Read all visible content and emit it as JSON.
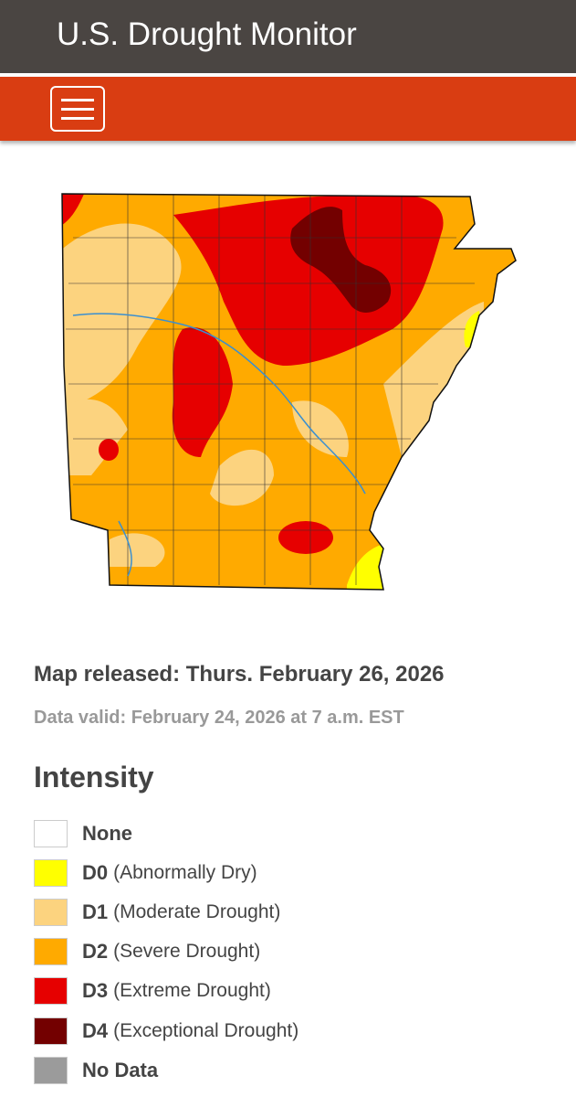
{
  "header": {
    "title": "U.S. Drought Monitor"
  },
  "map_info": {
    "released": "Map released: Thurs. February 26, 2026",
    "valid": "Data valid: February 24, 2026 at 7 a.m. EST"
  },
  "legend": {
    "title": "Intensity",
    "items": [
      {
        "code": "None",
        "color": "#ffffff"
      },
      {
        "code": "D0",
        "description": "(Abnormally Dry)",
        "color": "#ffff00"
      },
      {
        "code": "D1",
        "description": "(Moderate Drought)",
        "color": "#fcd37f"
      },
      {
        "code": "D2",
        "description": "(Severe Drought)",
        "color": "#ffaa00"
      },
      {
        "code": "D3",
        "description": "(Extreme Drought)",
        "color": "#e60000"
      },
      {
        "code": "D4",
        "description": "(Exceptional Drought)",
        "color": "#730000"
      },
      {
        "code": "No Data",
        "color": "#9b9b9b"
      }
    ]
  }
}
